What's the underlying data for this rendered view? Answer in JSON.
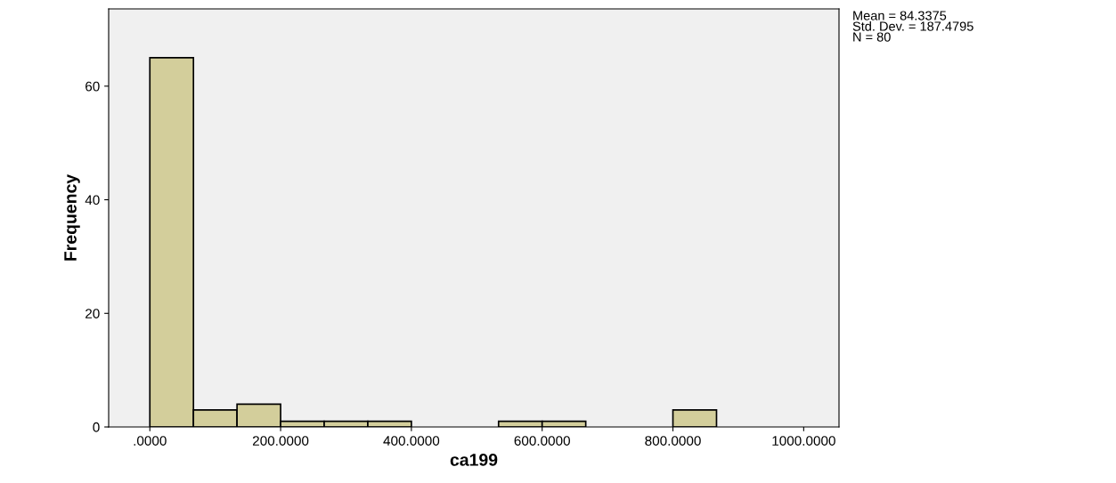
{
  "chart_data": {
    "type": "histogram",
    "xlabel": "ca199",
    "ylabel": "Frequency",
    "bins": [
      0,
      66.67,
      133.33,
      200,
      266.67,
      333.33,
      400,
      466.67,
      533.33,
      600,
      666.67,
      733.33,
      800,
      866.67
    ],
    "values": [
      65,
      3,
      4,
      1,
      1,
      1,
      0,
      0,
      1,
      1,
      0,
      0,
      3
    ],
    "color": "#d3ce9b",
    "xlim": [
      -63,
      1054
    ],
    "xticks": [
      {
        "value": 0,
        "label": ".0000"
      },
      {
        "value": 200,
        "label": "200.0000"
      },
      {
        "value": 400,
        "label": "400.0000"
      },
      {
        "value": 600,
        "label": "600.0000"
      },
      {
        "value": 800,
        "label": "800.0000"
      },
      {
        "value": 1000,
        "label": "1000.0000"
      }
    ],
    "ylim": [
      0,
      73.6
    ],
    "yticks": [
      0,
      20,
      40,
      60
    ],
    "annotations": [
      "Mean = 84.3375",
      "Std. Dev. = 187.4795",
      "N = 80"
    ]
  }
}
